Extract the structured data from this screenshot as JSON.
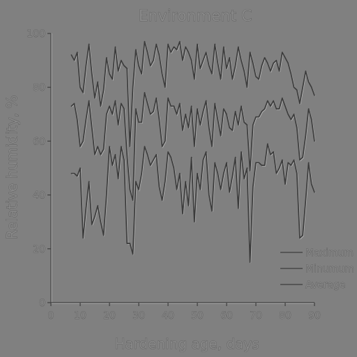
{
  "chart_data": {
    "type": "line",
    "title": "Environment C",
    "xlabel": "Hardening age, days",
    "ylabel": "Relative humidity, %",
    "xlim": [
      0,
      90
    ],
    "ylim": [
      0,
      100
    ],
    "xticks": [
      0,
      10,
      20,
      30,
      40,
      50,
      60,
      70,
      80,
      90
    ],
    "yticks": [
      0,
      20,
      40,
      60,
      80,
      100
    ],
    "grid": false,
    "legend_position": "bottom-right",
    "series": [
      {
        "name": "Maximum",
        "color": "#3c3c3c",
        "x": [
          7,
          8,
          9,
          10,
          11,
          12,
          13,
          14,
          15,
          16,
          17,
          18,
          19,
          20,
          21,
          22,
          23,
          24,
          25,
          26,
          27,
          28,
          29,
          30,
          31,
          32,
          33,
          34,
          35,
          36,
          37,
          38,
          39,
          40,
          41,
          42,
          43,
          44,
          45,
          46,
          47,
          48,
          49,
          50,
          51,
          52,
          53,
          54,
          55,
          56,
          57,
          58,
          59,
          60,
          61,
          62,
          63,
          64,
          65,
          66,
          67,
          68,
          69,
          70,
          71,
          72,
          73,
          74,
          75,
          76,
          77,
          78,
          79,
          80,
          81,
          82,
          83,
          84,
          85,
          86,
          87,
          88,
          89,
          90
        ],
        "y": [
          92,
          90,
          93,
          80,
          78,
          88,
          96,
          85,
          76,
          82,
          73,
          79,
          91,
          85,
          83,
          95,
          86,
          90,
          88,
          87,
          58,
          80,
          94,
          88,
          85,
          97,
          93,
          88,
          90,
          96,
          92,
          85,
          80,
          96,
          93,
          95,
          94,
          97,
          90,
          95,
          93,
          90,
          83,
          96,
          87,
          90,
          93,
          88,
          85,
          96,
          89,
          83,
          95,
          87,
          91,
          83,
          88,
          95,
          90,
          86,
          80,
          93,
          89,
          84,
          83,
          88,
          91,
          89,
          86,
          89,
          90,
          86,
          93,
          91,
          89,
          85,
          80,
          79,
          74,
          80,
          86,
          82,
          80,
          77
        ]
      },
      {
        "name": "Minumum",
        "color": "#3c3c3c",
        "x": [
          7,
          8,
          9,
          10,
          11,
          12,
          13,
          14,
          15,
          16,
          17,
          18,
          19,
          20,
          21,
          22,
          23,
          24,
          25,
          26,
          27,
          28,
          29,
          30,
          31,
          32,
          33,
          34,
          35,
          36,
          37,
          38,
          39,
          40,
          41,
          42,
          43,
          44,
          45,
          46,
          47,
          48,
          49,
          50,
          51,
          52,
          53,
          54,
          55,
          56,
          57,
          58,
          59,
          60,
          61,
          62,
          63,
          64,
          65,
          66,
          67,
          68,
          69,
          70,
          71,
          72,
          73,
          74,
          75,
          76,
          77,
          78,
          79,
          80,
          81,
          82,
          83,
          84,
          85,
          86,
          87,
          88,
          89,
          90
        ],
        "y": [
          48,
          48,
          47,
          50,
          24,
          35,
          45,
          29,
          32,
          36,
          30,
          25,
          40,
          58,
          51,
          55,
          46,
          58,
          53,
          22,
          22,
          18,
          45,
          42,
          48,
          58,
          55,
          51,
          53,
          55,
          43,
          38,
          45,
          56,
          54,
          50,
          42,
          48,
          33,
          45,
          36,
          54,
          30,
          48,
          42,
          53,
          56,
          40,
          34,
          52,
          48,
          42,
          48,
          52,
          41,
          47,
          54,
          35,
          56,
          46,
          50,
          15,
          43,
          52,
          52,
          51,
          51,
          59,
          55,
          56,
          48,
          50,
          53,
          44,
          52,
          51,
          53,
          48,
          24,
          25,
          38,
          52,
          44,
          41
        ]
      },
      {
        "name": "Average",
        "color": "#3c3c3c",
        "x": [
          7,
          8,
          9,
          10,
          11,
          12,
          13,
          14,
          15,
          16,
          17,
          18,
          19,
          20,
          21,
          22,
          23,
          24,
          25,
          26,
          27,
          28,
          29,
          30,
          31,
          32,
          33,
          34,
          35,
          36,
          37,
          38,
          39,
          40,
          41,
          42,
          43,
          44,
          45,
          46,
          47,
          48,
          49,
          50,
          51,
          52,
          53,
          54,
          55,
          56,
          57,
          58,
          59,
          60,
          61,
          62,
          63,
          64,
          65,
          66,
          67,
          68,
          69,
          70,
          71,
          72,
          73,
          74,
          75,
          76,
          77,
          78,
          79,
          80,
          81,
          82,
          83,
          84,
          85,
          86,
          87,
          88,
          89,
          90
        ],
        "y": [
          73,
          74,
          68,
          58,
          60,
          68,
          75,
          65,
          55,
          58,
          55,
          57,
          70,
          73,
          70,
          75,
          66,
          74,
          72,
          55,
          42,
          38,
          72,
          67,
          67,
          78,
          74,
          70,
          71,
          76,
          68,
          58,
          60,
          76,
          73,
          73,
          70,
          74,
          64,
          70,
          65,
          73,
          58,
          72,
          66,
          71,
          75,
          65,
          58,
          74,
          68,
          62,
          72,
          70,
          65,
          64,
          71,
          66,
          73,
          67,
          66,
          49,
          66,
          69,
          69,
          71,
          72,
          75,
          73,
          75,
          72,
          72,
          76,
          73,
          70,
          68,
          70,
          65,
          53,
          54,
          62,
          72,
          68,
          60
        ]
      }
    ]
  }
}
